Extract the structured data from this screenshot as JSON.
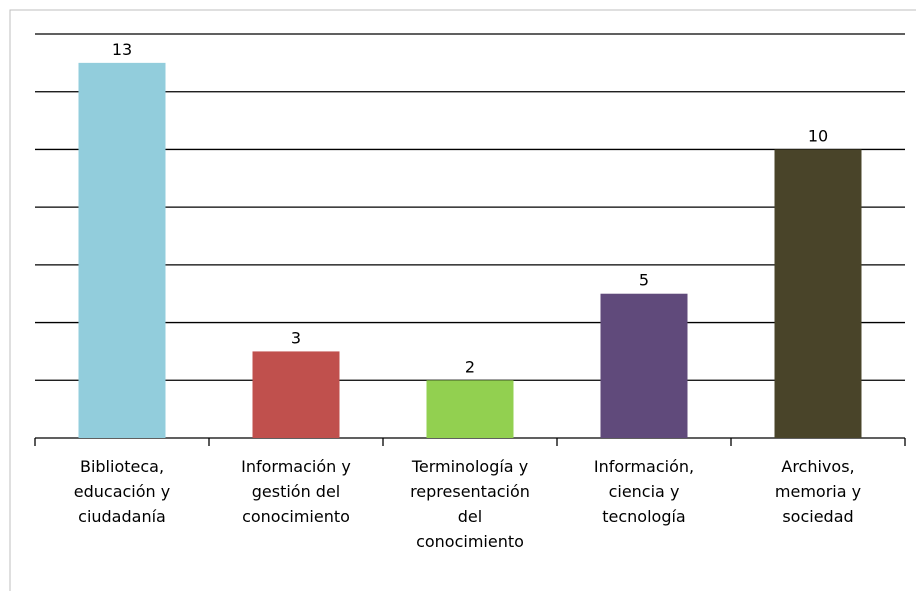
{
  "chart_data": {
    "type": "bar",
    "categories": [
      "Biblioteca,\neducación y\nciudadanía",
      "Información y\ngestión del\nconocimiento",
      "Terminología y\nrepresentación\ndel\nconocimiento",
      "Información,\nciencia y\ntecnología",
      "Archivos,\nmemoria y\nsociedad"
    ],
    "values": [
      13,
      3,
      2,
      5,
      10
    ],
    "colors": [
      "#92cddc",
      "#c0504d",
      "#92d050",
      "#604a7b",
      "#494429"
    ],
    "ylim": [
      0,
      14
    ],
    "yticks": [
      0,
      2,
      4,
      6,
      8,
      10,
      12,
      14
    ],
    "grid": true
  }
}
